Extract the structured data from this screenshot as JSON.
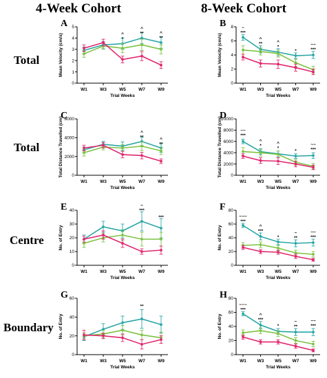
{
  "columns": [
    "4-Week Cohort",
    "8-Week Cohort"
  ],
  "rows": [
    "Total",
    "Total",
    "Centre",
    "Boundary"
  ],
  "colors": {
    "teal": "#2aa6a6",
    "green": "#7cc242",
    "magenta": "#e0266e"
  },
  "chart_data": [
    {
      "panel": "A",
      "type": "line",
      "xlabel": "Trial Weeks",
      "ylabel": "Mean Velocity (cm/s)",
      "categories": [
        "W1",
        "W3",
        "W5",
        "W7",
        "W9"
      ],
      "ylim": [
        0,
        5
      ],
      "yticks": [
        0,
        1,
        2,
        3,
        4,
        5
      ],
      "series": [
        {
          "color": "teal",
          "values": [
            2.9,
            3.4,
            3.5,
            4.0,
            3.6
          ],
          "err": [
            0.3,
            0.3,
            0.5,
            0.5,
            0.5
          ]
        },
        {
          "color": "green",
          "values": [
            2.6,
            3.3,
            3.1,
            3.4,
            3.0
          ],
          "err": [
            0.3,
            0.3,
            0.4,
            0.5,
            0.4
          ]
        },
        {
          "color": "magenta",
          "values": [
            3.1,
            3.6,
            2.1,
            2.4,
            1.6
          ],
          "err": [
            0.3,
            0.3,
            0.3,
            0.4,
            0.3
          ]
        }
      ],
      "annotations": [
        {
          "x": "W5",
          "y": 3.8,
          "lines": [
            "^",
            "*"
          ]
        },
        {
          "x": "W7",
          "y": 4.3,
          "lines": [
            "^",
            "**"
          ]
        },
        {
          "x": "W9",
          "y": 3.9,
          "lines": [
            "^",
            "**"
          ]
        }
      ]
    },
    {
      "panel": "B",
      "type": "line",
      "xlabel": "Trial Weeks",
      "ylabel": "Mean Velocity (cm/s)",
      "categories": [
        "W1",
        "W3",
        "W5",
        "W7",
        "W9"
      ],
      "ylim": [
        0,
        8
      ],
      "yticks": [
        0,
        2,
        4,
        6,
        8
      ],
      "series": [
        {
          "color": "teal",
          "values": [
            6.5,
            4.8,
            4.4,
            3.9,
            4.0
          ],
          "err": [
            0.4,
            0.5,
            0.5,
            0.4,
            0.5
          ]
        },
        {
          "color": "green",
          "values": [
            4.7,
            4.5,
            4.2,
            2.9,
            1.9
          ],
          "err": [
            0.6,
            0.5,
            0.5,
            0.5,
            0.5
          ]
        },
        {
          "color": "magenta",
          "values": [
            3.7,
            2.8,
            2.7,
            2.2,
            1.6
          ],
          "err": [
            0.4,
            0.5,
            0.6,
            0.5,
            0.4
          ]
        }
      ],
      "annotations": [
        {
          "x": "W1",
          "y": 7.0,
          "lines": [
            "~",
            "***"
          ]
        },
        {
          "x": "W3",
          "y": 5.4,
          "lines": [
            "^",
            "**"
          ]
        },
        {
          "x": "W5",
          "y": 5.0,
          "lines": [
            "^",
            "*"
          ]
        },
        {
          "x": "W7",
          "y": 4.4,
          "lines": [
            "*"
          ]
        },
        {
          "x": "W9",
          "y": 4.6,
          "lines": [
            "~~",
            "***"
          ]
        }
      ]
    },
    {
      "panel": "C",
      "type": "line",
      "xlabel": "Trial Weeks",
      "ylabel": "Total Distance Travelled (cm)",
      "categories": [
        "W1",
        "W3",
        "W5",
        "W7",
        "W9"
      ],
      "ylim": [
        0,
        6000
      ],
      "yticks": [
        0,
        2000,
        4000,
        6000
      ],
      "series": [
        {
          "color": "teal",
          "values": [
            2700,
            3300,
            3100,
            3600,
            2900
          ],
          "err": [
            300,
            300,
            450,
            450,
            450
          ]
        },
        {
          "color": "green",
          "values": [
            2400,
            3000,
            2900,
            3100,
            2600
          ],
          "err": [
            350,
            300,
            350,
            450,
            400
          ]
        },
        {
          "color": "magenta",
          "values": [
            2900,
            3200,
            2200,
            2100,
            1500
          ],
          "err": [
            300,
            300,
            350,
            350,
            250
          ]
        }
      ],
      "annotations": [
        {
          "x": "W7",
          "y": 3900,
          "lines": [
            "^",
            "**"
          ]
        },
        {
          "x": "W9",
          "y": 3200,
          "lines": [
            "^",
            "**"
          ]
        }
      ]
    },
    {
      "panel": "D",
      "type": "line",
      "xlabel": "Trial Weeks",
      "ylabel": "Total Distance Travelled (cm)",
      "categories": [
        "W1",
        "W3",
        "W5",
        "W7",
        "W9"
      ],
      "ylim": [
        0,
        10000
      ],
      "yticks": [
        0,
        2000,
        4000,
        6000,
        8000,
        10000
      ],
      "series": [
        {
          "color": "teal",
          "values": [
            6000,
            4200,
            3800,
            3400,
            3500
          ],
          "err": [
            400,
            500,
            500,
            400,
            500
          ]
        },
        {
          "color": "green",
          "values": [
            4200,
            4000,
            3700,
            2300,
            1600
          ],
          "err": [
            700,
            600,
            600,
            500,
            500
          ]
        },
        {
          "color": "magenta",
          "values": [
            3400,
            2600,
            2500,
            2000,
            1400
          ],
          "err": [
            400,
            500,
            600,
            500,
            400
          ]
        }
      ],
      "annotations": [
        {
          "x": "W1",
          "y": 6800,
          "lines": [
            "~~",
            "***"
          ]
        },
        {
          "x": "W3",
          "y": 5000,
          "lines": [
            "^",
            "*"
          ]
        },
        {
          "x": "W5",
          "y": 4600,
          "lines": [
            "^",
            "*"
          ]
        },
        {
          "x": "W7",
          "y": 4100,
          "lines": [
            "*"
          ]
        },
        {
          "x": "W9",
          "y": 4300,
          "lines": [
            "~~",
            "***"
          ]
        }
      ]
    },
    {
      "panel": "E",
      "type": "line",
      "xlabel": "Trial Weeks",
      "ylabel": "No. of Entry",
      "categories": [
        "W1",
        "W3",
        "W5",
        "W7",
        "W9"
      ],
      "ylim": [
        0,
        40
      ],
      "yticks": [
        0,
        10,
        20,
        30,
        40
      ],
      "series": [
        {
          "color": "teal",
          "values": [
            19,
            28,
            25,
            32,
            27
          ],
          "err": [
            3,
            4,
            5,
            7,
            7
          ]
        },
        {
          "color": "green",
          "values": [
            16,
            20,
            22,
            19,
            19
          ],
          "err": [
            3,
            3,
            4,
            5,
            5
          ]
        },
        {
          "color": "magenta",
          "values": [
            19,
            22,
            16,
            10,
            11
          ],
          "err": [
            2,
            3,
            3,
            2,
            3
          ]
        }
      ],
      "annotations": [
        {
          "x": "W7",
          "y": 39,
          "lines": [
            "~",
            "***"
          ]
        },
        {
          "x": "W9",
          "y": 34,
          "lines": [
            "***"
          ]
        }
      ]
    },
    {
      "panel": "F",
      "type": "line",
      "xlabel": "Trial Weeks",
      "ylabel": "No. of Entry",
      "categories": [
        "W1",
        "W3",
        "W5",
        "W7",
        "W9"
      ],
      "ylim": [
        0,
        80
      ],
      "yticks": [
        0,
        20,
        40,
        60,
        80
      ],
      "series": [
        {
          "color": "teal",
          "values": [
            58,
            42,
            34,
            32,
            33
          ],
          "err": [
            3,
            5,
            4,
            5,
            5
          ]
        },
        {
          "color": "green",
          "values": [
            29,
            30,
            25,
            18,
            16
          ],
          "err": [
            4,
            4,
            4,
            4,
            4
          ]
        },
        {
          "color": "magenta",
          "values": [
            26,
            20,
            19,
            13,
            8
          ],
          "err": [
            3,
            3,
            3,
            3,
            2
          ]
        }
      ],
      "annotations": [
        {
          "x": "W1",
          "y": 62,
          "lines": [
            "~~~",
            "***"
          ]
        },
        {
          "x": "W3",
          "y": 48,
          "lines": [
            "^",
            "***"
          ]
        },
        {
          "x": "W5",
          "y": 39,
          "lines": [
            "*"
          ]
        },
        {
          "x": "W7",
          "y": 38,
          "lines": [
            "~",
            "**"
          ]
        },
        {
          "x": "W9",
          "y": 39,
          "lines": [
            "~~",
            "***"
          ]
        }
      ]
    },
    {
      "panel": "G",
      "type": "line",
      "xlabel": "Trial Weeks",
      "ylabel": "No. of Entry",
      "categories": [
        "W1",
        "W3",
        "W5",
        "W7",
        "W9"
      ],
      "ylim": [
        0,
        60
      ],
      "yticks": [
        0,
        20,
        40,
        60
      ],
      "series": [
        {
          "color": "teal",
          "values": [
            19,
            27,
            34,
            38,
            32
          ],
          "err": [
            4,
            6,
            7,
            10,
            9
          ]
        },
        {
          "color": "green",
          "values": [
            20,
            22,
            26,
            21,
            18
          ],
          "err": [
            3,
            4,
            5,
            5,
            6
          ]
        },
        {
          "color": "magenta",
          "values": [
            21,
            20,
            18,
            11,
            16
          ],
          "err": [
            5,
            3,
            4,
            5,
            4
          ]
        }
      ],
      "annotations": [
        {
          "x": "W7",
          "y": 50,
          "lines": [
            "**"
          ]
        }
      ]
    },
    {
      "panel": "H",
      "type": "line",
      "xlabel": "Trial Weeks",
      "ylabel": "No. of Entry",
      "categories": [
        "W1",
        "W3",
        "W5",
        "W7",
        "W9"
      ],
      "ylim": [
        0,
        80
      ],
      "yticks": [
        0,
        20,
        40,
        60,
        80
      ],
      "series": [
        {
          "color": "teal",
          "values": [
            58,
            42,
            33,
            32,
            32
          ],
          "err": [
            3,
            5,
            4,
            5,
            5
          ]
        },
        {
          "color": "green",
          "values": [
            31,
            34,
            30,
            20,
            15
          ],
          "err": [
            4,
            4,
            4,
            4,
            4
          ]
        },
        {
          "color": "magenta",
          "values": [
            25,
            18,
            18,
            12,
            6
          ],
          "err": [
            3,
            3,
            3,
            3,
            2
          ]
        }
      ],
      "annotations": [
        {
          "x": "W1",
          "y": 62,
          "lines": [
            "~~~",
            "***"
          ]
        },
        {
          "x": "W3",
          "y": 48,
          "lines": [
            "^",
            "***"
          ]
        },
        {
          "x": "W5",
          "y": 39,
          "lines": [
            "*"
          ]
        },
        {
          "x": "W7",
          "y": 38,
          "lines": [
            "~",
            "**"
          ]
        },
        {
          "x": "W9",
          "y": 39,
          "lines": [
            "~~",
            "***"
          ]
        }
      ]
    }
  ]
}
